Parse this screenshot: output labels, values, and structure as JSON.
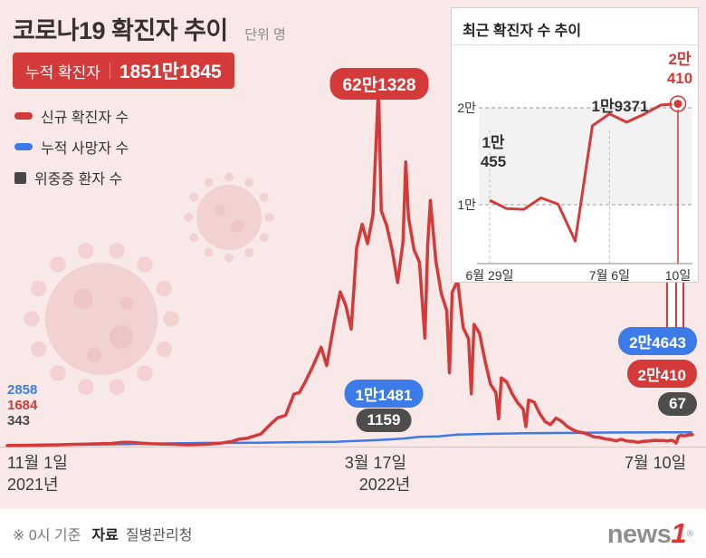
{
  "header": {
    "title": "코로나19 확진자 추이",
    "unit": "단위 명",
    "badge": {
      "label": "누적 확진자",
      "value": "1851만1845"
    }
  },
  "legend": {
    "items": [
      {
        "label": "신규 확진자 수",
        "color": "#d43a3a"
      },
      {
        "label": "누적 사망자 수",
        "color": "#3d7ce8"
      },
      {
        "label": "위중증 환자 수",
        "color": "#474747"
      }
    ]
  },
  "footer": {
    "note": "※ 0시 기준",
    "source_label": "자료",
    "source_value": "질병관리청",
    "logo": {
      "text": "news",
      "one": "1",
      "reg": "®"
    }
  },
  "colors": {
    "background": "#f8e8e8",
    "red": "#d43a3a",
    "blue": "#3d7ce8",
    "dark": "#4d4d4d"
  },
  "chart_data": [
    {
      "type": "line",
      "title": "코로나19 확진자 추이",
      "x_unit": "days since 2021-11-01",
      "x_range": [
        0,
        251
      ],
      "y_range": [
        0,
        650000
      ],
      "grid": false,
      "xticks": [
        {
          "l1": "11월 1일",
          "l2": "2021년"
        },
        {
          "l1": "3월 17일",
          "l2": "2022년"
        },
        {
          "l1": "7월 10일",
          "l2": ""
        }
      ],
      "annotations": {
        "peak": "62만1328",
        "deaths_mid": "1만1481",
        "severe_mid": "1159",
        "left_deaths": "2858",
        "left_new": "1684",
        "left_severe": "343",
        "right_deaths": "2만4643",
        "right_new": "2만410",
        "right_severe": "67"
      },
      "series": [
        {
          "name": "신규 확진자 수",
          "color": "#d43a3a",
          "points": [
            [
              0,
              1684
            ],
            [
              3,
              2000
            ],
            [
              7,
              2200
            ],
            [
              10,
              2420
            ],
            [
              14,
              2665
            ],
            [
              18,
              3032
            ],
            [
              21,
              3300
            ],
            [
              25,
              3938
            ],
            [
              28,
              4068
            ],
            [
              31,
              4542
            ],
            [
              35,
              5037
            ],
            [
              38,
              5352
            ],
            [
              42,
              7175
            ],
            [
              45,
              7456
            ],
            [
              48,
              6233
            ],
            [
              52,
              5202
            ],
            [
              56,
              4532
            ],
            [
              60,
              4207
            ],
            [
              63,
              3623
            ],
            [
              66,
              3094
            ],
            [
              70,
              3510
            ],
            [
              74,
              4423
            ],
            [
              78,
              5805
            ],
            [
              82,
              8571
            ],
            [
              85,
              13012
            ],
            [
              88,
              14518
            ],
            [
              90,
              17532
            ],
            [
              93,
              22069
            ],
            [
              96,
              36346
            ],
            [
              99,
              49567
            ],
            [
              102,
              54122
            ],
            [
              105,
              90443
            ],
            [
              107,
              93135
            ],
            [
              109,
              109831
            ],
            [
              112,
              138993
            ],
            [
              115,
              171452
            ],
            [
              117,
              139626
            ],
            [
              120,
              219241
            ],
            [
              122,
              266853
            ],
            [
              124,
              243628
            ],
            [
              126,
              202721
            ],
            [
              128,
              342446
            ],
            [
              130,
              383665
            ],
            [
              132,
              350190
            ],
            [
              134,
              400741
            ],
            [
              136,
              621328
            ],
            [
              137,
              407017
            ],
            [
              139,
              381454
            ],
            [
              141,
              339514
            ],
            [
              143,
              282987
            ],
            [
              145,
              353980
            ],
            [
              146,
              490881
            ],
            [
              147,
              395598
            ],
            [
              149,
              339514
            ],
            [
              151,
              318130
            ],
            [
              153,
              187213
            ],
            [
              154,
              347554
            ],
            [
              155,
              424641
            ],
            [
              157,
              320743
            ],
            [
              159,
              264171
            ],
            [
              161,
              234301
            ],
            [
              162,
              127190
            ],
            [
              163,
              266135
            ],
            [
              165,
              286294
            ],
            [
              167,
              205333
            ],
            [
              169,
              185566
            ],
            [
              170,
              90928
            ],
            [
              171,
              210755
            ],
            [
              173,
              195419
            ],
            [
              175,
              148443
            ],
            [
              177,
              107916
            ],
            [
              179,
              93001
            ],
            [
              180,
              47743
            ],
            [
              181,
              118504
            ],
            [
              183,
              111319
            ],
            [
              185,
              90867
            ],
            [
              187,
              75449
            ],
            [
              189,
              64725
            ],
            [
              190,
              34370
            ],
            [
              191,
              80361
            ],
            [
              193,
              76787
            ],
            [
              195,
              57464
            ],
            [
              197,
              43286
            ],
            [
              199,
              37771
            ],
            [
              201,
              49064
            ],
            [
              203,
              43925
            ],
            [
              205,
              35117
            ],
            [
              207,
              29576
            ],
            [
              209,
              25434
            ],
            [
              211,
              23956
            ],
            [
              213,
              20601
            ],
            [
              215,
              16584
            ],
            [
              217,
              15797
            ],
            [
              219,
              13358
            ],
            [
              221,
              12161
            ],
            [
              223,
              9896
            ],
            [
              225,
              12542
            ],
            [
              227,
              9528
            ],
            [
              229,
              8992
            ],
            [
              231,
              7382
            ],
            [
              233,
              8992
            ],
            [
              235,
              9595
            ],
            [
              237,
              10715
            ],
            [
              239,
              10283
            ],
            [
              240,
              10455
            ],
            [
              242,
              9528
            ],
            [
              243,
              10707
            ],
            [
              244,
              10059
            ],
            [
              245,
              6253
            ],
            [
              246,
              18147
            ],
            [
              247,
              19371
            ],
            [
              248,
              18511
            ],
            [
              249,
              19323
            ],
            [
              250,
              20286
            ],
            [
              251,
              20410
            ]
          ]
        },
        {
          "name": "누적 사망자 수",
          "color": "#3d7ce8",
          "points": [
            [
              0,
              2858
            ],
            [
              15,
              3137
            ],
            [
              30,
              3658
            ],
            [
              45,
              4293
            ],
            [
              61,
              5625
            ],
            [
              75,
              6480
            ],
            [
              92,
              6787
            ],
            [
              106,
              7607
            ],
            [
              120,
              8266
            ],
            [
              130,
              10144
            ],
            [
              136,
              11481
            ],
            [
              142,
              12757
            ],
            [
              145,
              13902
            ],
            [
              151,
              16929
            ],
            [
              158,
              17662
            ],
            [
              165,
              20616
            ],
            [
              172,
              21354
            ],
            [
              180,
              22133
            ],
            [
              190,
              22958
            ],
            [
              200,
              23491
            ],
            [
              210,
              23744
            ],
            [
              220,
              24212
            ],
            [
              230,
              24441
            ],
            [
              240,
              24522
            ],
            [
              251,
              24643
            ]
          ]
        }
      ]
    },
    {
      "type": "line",
      "title": "최근 확진자 수 추이",
      "x_unit": "days since 2022-06-29",
      "x_range": [
        0,
        11
      ],
      "y_range": [
        4000,
        23000
      ],
      "yticks": [
        {
          "value": 20000,
          "label": "2만"
        },
        {
          "value": 10000,
          "label": "1만"
        }
      ],
      "xticks": [
        {
          "day": 0,
          "label": "6월 29일"
        },
        {
          "day": 7,
          "label": "7월 6일"
        },
        {
          "day": 11,
          "label": "10일"
        }
      ],
      "labels": {
        "start": [
          "1만",
          "455"
        ],
        "mid": "1만9371",
        "end": [
          "2만",
          "410"
        ]
      },
      "series": [
        {
          "name": "신규 확진자 수",
          "color": "#d43a3a",
          "points": [
            [
              0,
              10455
            ],
            [
              1,
              9595
            ],
            [
              2,
              9528
            ],
            [
              3,
              10707
            ],
            [
              4,
              10059
            ],
            [
              5,
              6253
            ],
            [
              6,
              18147
            ],
            [
              7,
              19371
            ],
            [
              8,
              18511
            ],
            [
              9,
              19323
            ],
            [
              10,
              20286
            ],
            [
              11,
              20410
            ]
          ]
        }
      ]
    }
  ]
}
